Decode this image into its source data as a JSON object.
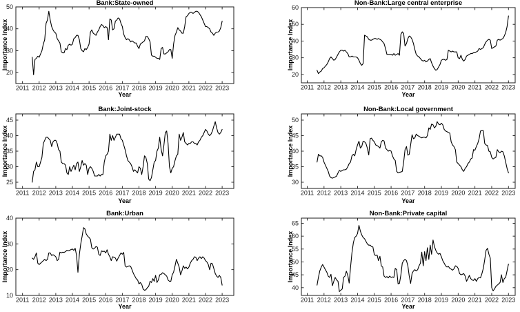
{
  "figure": {
    "background_color": "#ffffff",
    "axis_color": "#1a1a1a",
    "line_color": "#000000"
  },
  "chart_data": [
    {
      "type": "line",
      "title": "Bank:State-owned",
      "xlabel": "Year",
      "ylabel": "Importance Index",
      "legend": null,
      "grid": false,
      "x_start": 2011.583,
      "x_step": 0.083333,
      "xlim": [
        2010.6,
        2023.7
      ],
      "ylim": [
        15,
        50
      ],
      "xticks": [
        2011,
        2012,
        2013,
        2014,
        2015,
        2016,
        2017,
        2018,
        2019,
        2020,
        2021,
        2022,
        2023
      ],
      "yticks": [
        20,
        30,
        40,
        50
      ],
      "values": [
        27,
        19,
        26,
        26.5,
        27.5,
        27,
        28.5,
        30,
        33,
        35,
        42.5,
        44,
        48,
        44,
        41,
        39.5,
        38.5,
        38,
        35.5,
        34.5,
        33.5,
        29.5,
        29,
        29,
        31,
        30.5,
        32.5,
        33,
        32.5,
        33,
        35.5,
        36,
        37,
        37,
        35,
        31,
        30,
        29.5,
        31,
        30.5,
        31.5,
        33,
        38.5,
        39.5,
        38,
        37.5,
        37,
        38.5,
        39.5,
        41,
        42,
        41.5,
        40.5,
        41,
        40.5,
        35,
        44.5,
        44,
        39.5,
        40,
        43.5,
        44,
        45,
        44.5,
        42.5,
        41,
        37.5,
        36,
        35,
        35.5,
        35,
        34,
        34.5,
        34,
        33.5,
        33.5,
        32,
        31,
        33,
        33.5,
        34,
        34.5,
        36.5,
        36.5,
        35.5,
        34,
        28,
        27.5,
        27.5,
        27,
        26.5,
        26.5,
        26,
        31,
        31.5,
        28.5,
        28.5,
        29,
        29.5,
        30.5,
        30.5,
        26.5,
        33,
        37,
        38.5,
        40.5,
        39.5,
        39,
        38,
        38,
        41,
        45.5,
        46,
        47,
        47.5,
        47.5,
        47,
        47.5,
        48,
        48,
        47.5,
        46.5,
        45.5,
        44,
        42.5,
        41,
        41,
        40.5,
        40,
        38.5,
        38,
        37,
        38,
        38.5,
        38.5,
        39,
        40.5,
        43.5
      ]
    },
    {
      "type": "line",
      "title": "Non-Bank:Large central enterprise",
      "xlabel": "Year",
      "ylabel": "Importance Index",
      "legend": null,
      "grid": false,
      "x_start": 2011.583,
      "x_step": 0.083333,
      "xlim": [
        2010.65,
        2023.4
      ],
      "ylim": [
        15,
        60
      ],
      "xticks": [
        2011,
        2012,
        2013,
        2014,
        2015,
        2016,
        2017,
        2018,
        2019,
        2020,
        2021,
        2022,
        2023
      ],
      "yticks": [
        20,
        30,
        40,
        50,
        60
      ],
      "values": [
        22.5,
        20.5,
        21.5,
        22,
        23.5,
        24,
        25,
        26,
        27.5,
        29.5,
        30.5,
        29.5,
        28.5,
        29,
        30.5,
        32,
        33.5,
        34.5,
        34.5,
        34,
        34.5,
        33.5,
        32.5,
        30.5,
        30.5,
        31,
        30.5,
        30.5,
        30.5,
        30,
        28.5,
        26.5,
        25.5,
        26.5,
        43.5,
        43,
        42.5,
        41,
        40.5,
        40.5,
        41,
        41.5,
        41.5,
        41,
        41.5,
        41,
        40.5,
        39.5,
        38.5,
        35.5,
        32,
        32,
        32,
        32,
        31.5,
        32.5,
        31.5,
        32,
        32.5,
        31.5,
        44,
        45.5,
        44.5,
        37,
        38.5,
        41.5,
        43,
        42.5,
        41,
        38.5,
        35,
        32,
        31,
        30.5,
        29.5,
        28.5,
        28,
        28.5,
        27.5,
        28,
        29,
        29.5,
        27,
        25,
        23.5,
        22.5,
        23,
        24.5,
        26,
        28.5,
        29,
        29,
        28.5,
        29,
        34.5,
        34,
        33.5,
        34,
        33.5,
        33.5,
        33.5,
        30,
        29.5,
        31.5,
        29,
        28,
        29,
        31,
        31.5,
        32,
        32.5,
        32.5,
        33,
        33,
        33.5,
        34,
        35.5,
        35,
        35.5,
        36,
        38,
        39.5,
        40.5,
        41,
        40.5,
        35.5,
        36,
        36.5,
        37,
        40.5,
        41,
        40.5,
        41,
        41.5,
        43,
        45,
        48.5,
        55
      ]
    },
    {
      "type": "line",
      "title": "Bank:Joint-stock",
      "xlabel": "Year",
      "ylabel": "Importance Index",
      "legend": null,
      "grid": false,
      "x_start": 2011.583,
      "x_step": 0.083333,
      "xlim": [
        2010.6,
        2023.7
      ],
      "ylim": [
        23,
        47
      ],
      "xticks": [
        2011,
        2012,
        2013,
        2014,
        2015,
        2016,
        2017,
        2018,
        2019,
        2020,
        2021,
        2022,
        2023
      ],
      "yticks": [
        25,
        30,
        35,
        40,
        45
      ],
      "values": [
        25,
        28.5,
        29,
        31.5,
        30,
        30,
        31.5,
        33,
        37.5,
        38.5,
        39.5,
        39.5,
        39,
        38.5,
        36.5,
        38,
        38.5,
        38.5,
        37.5,
        35.5,
        35,
        31.5,
        31,
        31,
        30.5,
        28,
        27.5,
        30,
        28.5,
        29.5,
        30.5,
        29,
        31,
        31.5,
        28.5,
        30,
        32,
        30.5,
        31,
        30.5,
        27.5,
        29.5,
        30,
        29.5,
        28.5,
        27,
        27,
        27,
        27.5,
        27,
        27.5,
        27.5,
        31.5,
        33.5,
        34,
        35,
        40.5,
        38.5,
        40,
        38.5,
        39.5,
        40.5,
        40.5,
        40.5,
        39,
        38.5,
        37,
        35.5,
        33.5,
        32,
        31.5,
        31,
        30,
        28.5,
        29,
        28.5,
        28,
        30,
        29.5,
        27.5,
        30,
        33.5,
        33,
        31,
        26,
        25.5,
        26.5,
        29,
        31.5,
        32,
        35,
        36,
        39.5,
        35.5,
        33.5,
        37,
        41,
        41.5,
        37.5,
        30,
        28,
        29.5,
        30,
        32,
        33.5,
        34,
        40.5,
        38.5,
        39.5,
        41,
        38,
        37.5,
        37,
        37.5,
        37.5,
        38,
        38,
        37.5,
        37.5,
        37,
        38,
        38.5,
        39.5,
        40,
        41,
        42,
        41.5,
        40.5,
        40,
        40.5,
        41.5,
        43,
        44.5,
        42.5,
        41,
        40.5,
        41,
        42
      ]
    },
    {
      "type": "line",
      "title": "Non-Bank:Local government",
      "xlabel": "Year",
      "ylabel": "Importance Index",
      "legend": null,
      "grid": false,
      "x_start": 2011.583,
      "x_step": 0.083333,
      "xlim": [
        2010.65,
        2023.4
      ],
      "ylim": [
        28,
        52
      ],
      "xticks": [
        2011,
        2012,
        2013,
        2014,
        2015,
        2016,
        2017,
        2018,
        2019,
        2020,
        2021,
        2022,
        2023
      ],
      "yticks": [
        30,
        35,
        40,
        45,
        50
      ],
      "values": [
        36.5,
        39,
        38.5,
        38.5,
        38,
        36.5,
        35.5,
        34.5,
        33.5,
        32,
        31.5,
        31.3,
        31.5,
        31.7,
        32,
        33,
        33.8,
        33.5,
        33.8,
        34,
        34,
        34.2,
        35,
        36,
        36.5,
        38.5,
        39,
        38.5,
        40.5,
        42,
        43.2,
        41,
        41.5,
        43.2,
        43,
        42.5,
        41,
        38.8,
        44,
        44.2,
        43.5,
        43,
        42,
        41.8,
        41.5,
        41,
        43,
        43.5,
        43.3,
        41,
        40.5,
        40,
        40.3,
        40,
        38.5,
        37.5,
        37,
        33.5,
        33,
        33.2,
        33.3,
        33.5,
        36.5,
        40.5,
        41.5,
        38.7,
        39,
        42,
        45.3,
        44,
        44.3,
        45.5,
        45,
        44.8,
        44.5,
        44.3,
        44.5,
        44.5,
        44.3,
        45,
        47.5,
        47,
        48.7,
        48.5,
        47.5,
        48,
        49.5,
        48.7,
        48.5,
        49,
        48.5,
        47,
        46.5,
        46.3,
        46,
        45.8,
        43,
        42,
        41.5,
        40.5,
        36.5,
        36,
        35.5,
        35,
        34,
        33.5,
        34.5,
        35,
        36,
        36.5,
        37.5,
        37.8,
        40.5,
        40.3,
        41.5,
        42.5,
        44,
        46.5,
        46.6,
        46.6,
        42.5,
        42,
        41.8,
        40,
        39.8,
        38,
        37.5,
        37.8,
        38,
        40.5,
        39.8,
        39.5,
        40,
        39.8,
        38.5,
        36.5,
        34.5,
        33
      ]
    },
    {
      "type": "line",
      "title": "Bank:Urban",
      "xlabel": "Year",
      "ylabel": "Importance Index",
      "legend": null,
      "grid": false,
      "x_start": 2011.583,
      "x_step": 0.083333,
      "xlim": [
        2010.6,
        2023.7
      ],
      "ylim": [
        10,
        40
      ],
      "xticks": [
        2011,
        2012,
        2013,
        2014,
        2015,
        2016,
        2017,
        2018,
        2019,
        2020,
        2021,
        2022,
        2023
      ],
      "yticks": [
        10,
        20,
        30,
        40
      ],
      "values": [
        24.5,
        24,
        25,
        26.5,
        22.5,
        22,
        22.5,
        23,
        23.5,
        24,
        23.5,
        24,
        26.5,
        26.5,
        25.5,
        25.8,
        25.5,
        25,
        23.5,
        24,
        26.8,
        26.5,
        26.8,
        26.7,
        27,
        27.5,
        27.3,
        27.5,
        27.8,
        28,
        27.5,
        28.3,
        25.5,
        19,
        26,
        30,
        33,
        36.3,
        35.8,
        33.8,
        33,
        32.5,
        31.8,
        28.5,
        28,
        28.3,
        29,
        28.7,
        26,
        25.5,
        27.3,
        27,
        27.2,
        26.5,
        27.7,
        26,
        25,
        23.5,
        25,
        24.8,
        24.5,
        23.3,
        24.5,
        25.5,
        26.5,
        26,
        26.7,
        21.5,
        21,
        21.3,
        21.5,
        21.3,
        20,
        18.5,
        17.5,
        16.5,
        16,
        14.5,
        15,
        14.3,
        12.5,
        12,
        12.2,
        13,
        13.5,
        15.5,
        15,
        16.5,
        15.5,
        17.8,
        15,
        16,
        18,
        18.2,
        18.8,
        18.5,
        18,
        17.5,
        16,
        15.5,
        15.5,
        18,
        19,
        21.5,
        24,
        22.5,
        21,
        18,
        19.5,
        21.5,
        20.5,
        21,
        20.3,
        21,
        22.5,
        23.5,
        24,
        25,
        24.8,
        23.5,
        24.5,
        25,
        24.3,
        25,
        24.5,
        23.5,
        23,
        22,
        20,
        22.5,
        22.3,
        20.5,
        18.5,
        17.5,
        17,
        17.8,
        17,
        14
      ]
    },
    {
      "type": "line",
      "title": "Non-Bank:Private capital",
      "xlabel": "Year",
      "ylabel": "Importance Index",
      "legend": null,
      "grid": false,
      "x_start": 2011.583,
      "x_step": 0.083333,
      "xlim": [
        2010.65,
        2023.4
      ],
      "ylim": [
        37,
        67
      ],
      "xticks": [
        2011,
        2012,
        2013,
        2014,
        2015,
        2016,
        2017,
        2018,
        2019,
        2020,
        2021,
        2022,
        2023
      ],
      "yticks": [
        40,
        45,
        50,
        55,
        60,
        65
      ],
      "values": [
        41,
        44,
        46.5,
        48,
        49,
        48,
        47,
        46,
        44.5,
        44,
        45.2,
        40.8,
        42.5,
        44,
        43,
        42.5,
        38.5,
        39,
        39.5,
        44,
        44.5,
        46.4,
        44.8,
        41.8,
        48,
        53.5,
        57.5,
        59.5,
        60,
        61,
        64.2,
        62,
        60.5,
        59.5,
        59,
        58,
        57,
        56.5,
        56.5,
        56,
        55.8,
        52.8,
        52.5,
        52.7,
        50.5,
        52.2,
        48.5,
        48,
        44.5,
        44,
        44.3,
        43.8,
        44.5,
        44,
        44.2,
        44,
        47.5,
        47,
        41.5,
        41.7,
        45,
        49.5,
        50.5,
        51,
        50.5,
        48.5,
        44.5,
        41.7,
        45.5,
        46.5,
        47,
        46.5,
        47,
        48.5,
        49.5,
        53.8,
        48.5,
        54,
        50.5,
        55.5,
        51,
        56.5,
        53,
        58.5,
        56,
        54.5,
        53.5,
        53,
        53.3,
        52,
        50.5,
        49.5,
        48.5,
        48,
        48.3,
        47.5,
        47.2,
        46.8,
        47.3,
        48.5,
        48.3,
        47.5,
        45.5,
        45,
        45.2,
        45.5,
        44.5,
        42.5,
        43.5,
        44.8,
        43.5,
        43,
        42.8,
        43.5,
        42.5,
        43.5,
        44,
        43.8,
        45.5,
        47.5,
        50.8,
        54.5,
        55.3,
        53,
        51.5,
        40,
        38.8,
        39.5,
        40.5,
        41,
        41.5,
        42,
        45,
        42,
        43.5,
        44,
        46.5,
        49.2
      ]
    }
  ]
}
